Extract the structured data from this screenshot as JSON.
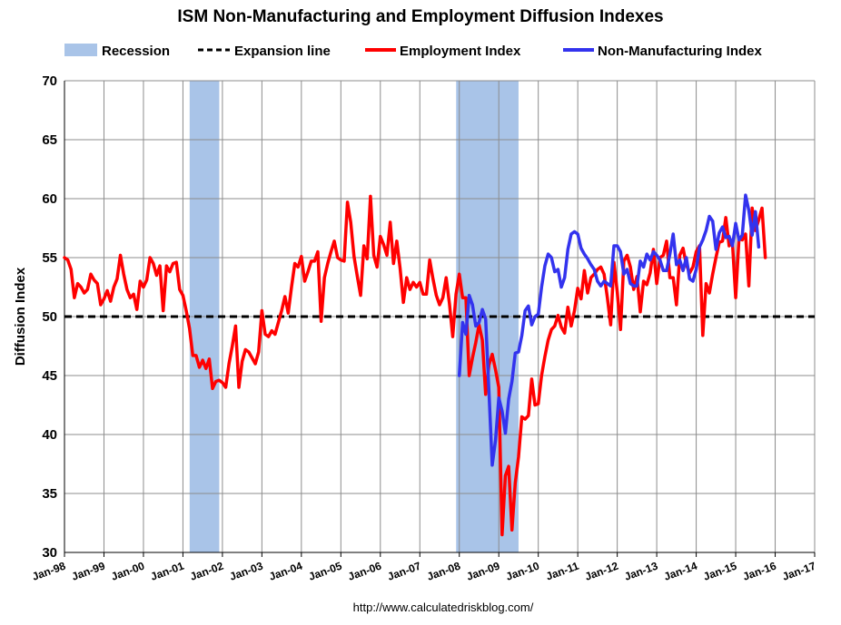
{
  "chart_data": {
    "type": "line",
    "title": "ISM Non-Manufacturing and Employment Diffusion Indexes",
    "ylabel": "Diffusion Index",
    "xlabel": "",
    "ylim": [
      30,
      70
    ],
    "yticks": [
      30,
      35,
      40,
      45,
      50,
      55,
      60,
      65,
      70
    ],
    "xlim": [
      1998.0,
      2017.0
    ],
    "xticks": [
      {
        "value": 1998,
        "label": "Jan-98"
      },
      {
        "value": 1999,
        "label": "Jan-99"
      },
      {
        "value": 2000,
        "label": "Jan-00"
      },
      {
        "value": 2001,
        "label": "Jan-01"
      },
      {
        "value": 2002,
        "label": "Jan-02"
      },
      {
        "value": 2003,
        "label": "Jan-03"
      },
      {
        "value": 2004,
        "label": "Jan-04"
      },
      {
        "value": 2005,
        "label": "Jan-05"
      },
      {
        "value": 2006,
        "label": "Jan-06"
      },
      {
        "value": 2007,
        "label": "Jan-07"
      },
      {
        "value": 2008,
        "label": "Jan-08"
      },
      {
        "value": 2009,
        "label": "Jan-09"
      },
      {
        "value": 2010,
        "label": "Jan-10"
      },
      {
        "value": 2011,
        "label": "Jan-11"
      },
      {
        "value": 2012,
        "label": "Jan-12"
      },
      {
        "value": 2013,
        "label": "Jan-13"
      },
      {
        "value": 2014,
        "label": "Jan-14"
      },
      {
        "value": 2015,
        "label": "Jan-15"
      },
      {
        "value": 2016,
        "label": "Jan-16"
      },
      {
        "value": 2017,
        "label": "Jan-17"
      }
    ],
    "grid": true,
    "legend": {
      "placement": "top",
      "entries": [
        {
          "key": "recession",
          "label": "Recession",
          "color": "#a9c4e8",
          "style": "patch"
        },
        {
          "key": "expansion",
          "label": "Expansion line",
          "color": "#000000",
          "style": "dashed"
        },
        {
          "key": "employment",
          "label": "Employment Index",
          "color": "#ff0000",
          "style": "line"
        },
        {
          "key": "nonmfg",
          "label": "Non-Manufacturing Index",
          "color": "#3333ee",
          "style": "line"
        }
      ]
    },
    "recessions": [
      {
        "start": 2001.17,
        "end": 2001.92
      },
      {
        "start": 2007.92,
        "end": 2009.5
      }
    ],
    "reference_line": {
      "value": 50,
      "label": "Expansion line"
    },
    "series": [
      {
        "name": "Employment Index",
        "color": "#ff0000",
        "x_start": 1998.0,
        "x_step": 0.0833333,
        "values": [
          55.0,
          54.8,
          54.0,
          51.6,
          52.8,
          52.5,
          52.0,
          52.3,
          53.6,
          53.1,
          52.8,
          51.0,
          51.5,
          52.2,
          51.3,
          52.5,
          53.2,
          55.2,
          53.6,
          52.3,
          51.6,
          51.9,
          50.6,
          53.0,
          52.5,
          53.1,
          55.0,
          54.5,
          53.5,
          54.3,
          50.5,
          54.3,
          53.8,
          54.5,
          54.6,
          52.3,
          51.8,
          50.5,
          49.0,
          46.7,
          46.7,
          45.7,
          46.3,
          45.6,
          46.4,
          43.9,
          44.5,
          44.6,
          44.4,
          44.0,
          46.0,
          47.5,
          49.2,
          44.0,
          46.2,
          47.2,
          47.0,
          46.5,
          46.0,
          47.0,
          50.5,
          48.5,
          48.3,
          48.8,
          48.5,
          49.5,
          50.5,
          51.7,
          50.3,
          52.5,
          54.5,
          54.2,
          55.1,
          53.0,
          53.8,
          54.7,
          54.7,
          55.5,
          49.6,
          53.3,
          54.5,
          55.5,
          56.4,
          55.0,
          54.8,
          54.7,
          59.7,
          58.0,
          55.1,
          53.4,
          51.8,
          56.0,
          54.9,
          60.2,
          55.2,
          54.2,
          56.8,
          56.1,
          55.2,
          58.0,
          54.5,
          56.4,
          54.1,
          51.2,
          53.3,
          52.3,
          52.9,
          52.5,
          52.9,
          51.9,
          51.9,
          54.8,
          53.2,
          51.8,
          51.0,
          51.6,
          53.3,
          51.1,
          48.3,
          51.9,
          53.6,
          51.6,
          51.6,
          45.0,
          46.5,
          47.8,
          49.3,
          48.0,
          43.4,
          45.9,
          46.8,
          45.5,
          44.0,
          31.5,
          36.5,
          37.3,
          31.9,
          35.9,
          38.1,
          41.5,
          41.3,
          41.6,
          44.7,
          42.5,
          42.6,
          45.0,
          46.6,
          48.0,
          48.9,
          49.2,
          50.1,
          49.1,
          48.6,
          50.8,
          49.2,
          50.5,
          52.4,
          51.5,
          53.9,
          52.0,
          53.3,
          53.6,
          54.0,
          54.2,
          53.6,
          51.6,
          49.3,
          54.6,
          52.1,
          48.9,
          54.7,
          55.2,
          54.2,
          52.3,
          53.4,
          50.4,
          53.0,
          52.7,
          53.7,
          55.7,
          52.8,
          55.0,
          55.2,
          56.4,
          53.3,
          53.3,
          51.0,
          55.2,
          55.8,
          54.4,
          53.7,
          54.2,
          55.5,
          56.0,
          48.4,
          52.8,
          52.0,
          53.6,
          55.0,
          56.3,
          56.4,
          58.4,
          56.0,
          56.3,
          51.6,
          56.6,
          56.5,
          57.0,
          52.6,
          59.2,
          57.3,
          58.2,
          59.2,
          55.0
        ]
      },
      {
        "name": "Non-Manufacturing Index",
        "color": "#3333ee",
        "x_start": 2008.0,
        "x_step": 0.0833333,
        "values": [
          45.0,
          49.5,
          48.5,
          51.8,
          51.0,
          49.2,
          49.5,
          50.6,
          49.8,
          43.7,
          37.4,
          39.5,
          43.1,
          42.0,
          40.1,
          43.0,
          44.5,
          46.9,
          47.0,
          48.4,
          50.5,
          50.9,
          49.3,
          50.0,
          50.2,
          52.5,
          54.3,
          55.3,
          55.0,
          53.8,
          54.0,
          52.5,
          53.3,
          55.7,
          57.0,
          57.2,
          57.0,
          55.8,
          55.3,
          54.9,
          54.4,
          54.0,
          53.0,
          52.6,
          53.0,
          52.8,
          52.6,
          56.0,
          56.0,
          55.5,
          53.6,
          54.0,
          52.8,
          52.6,
          52.6,
          54.7,
          54.2,
          55.3,
          54.8,
          55.5,
          55.2,
          54.8,
          53.9,
          53.9,
          55.3,
          57.0,
          54.4,
          54.8,
          53.9,
          55.0,
          53.2,
          53.0,
          54.0,
          55.9,
          56.5,
          57.3,
          58.5,
          58.1,
          55.7,
          57.1,
          57.6,
          56.7,
          56.8,
          56.0,
          57.9,
          56.5,
          56.9,
          60.3,
          59.0,
          56.9,
          58.9,
          55.9
        ]
      }
    ],
    "source": "http://www.calculatedriskblog.com/"
  }
}
